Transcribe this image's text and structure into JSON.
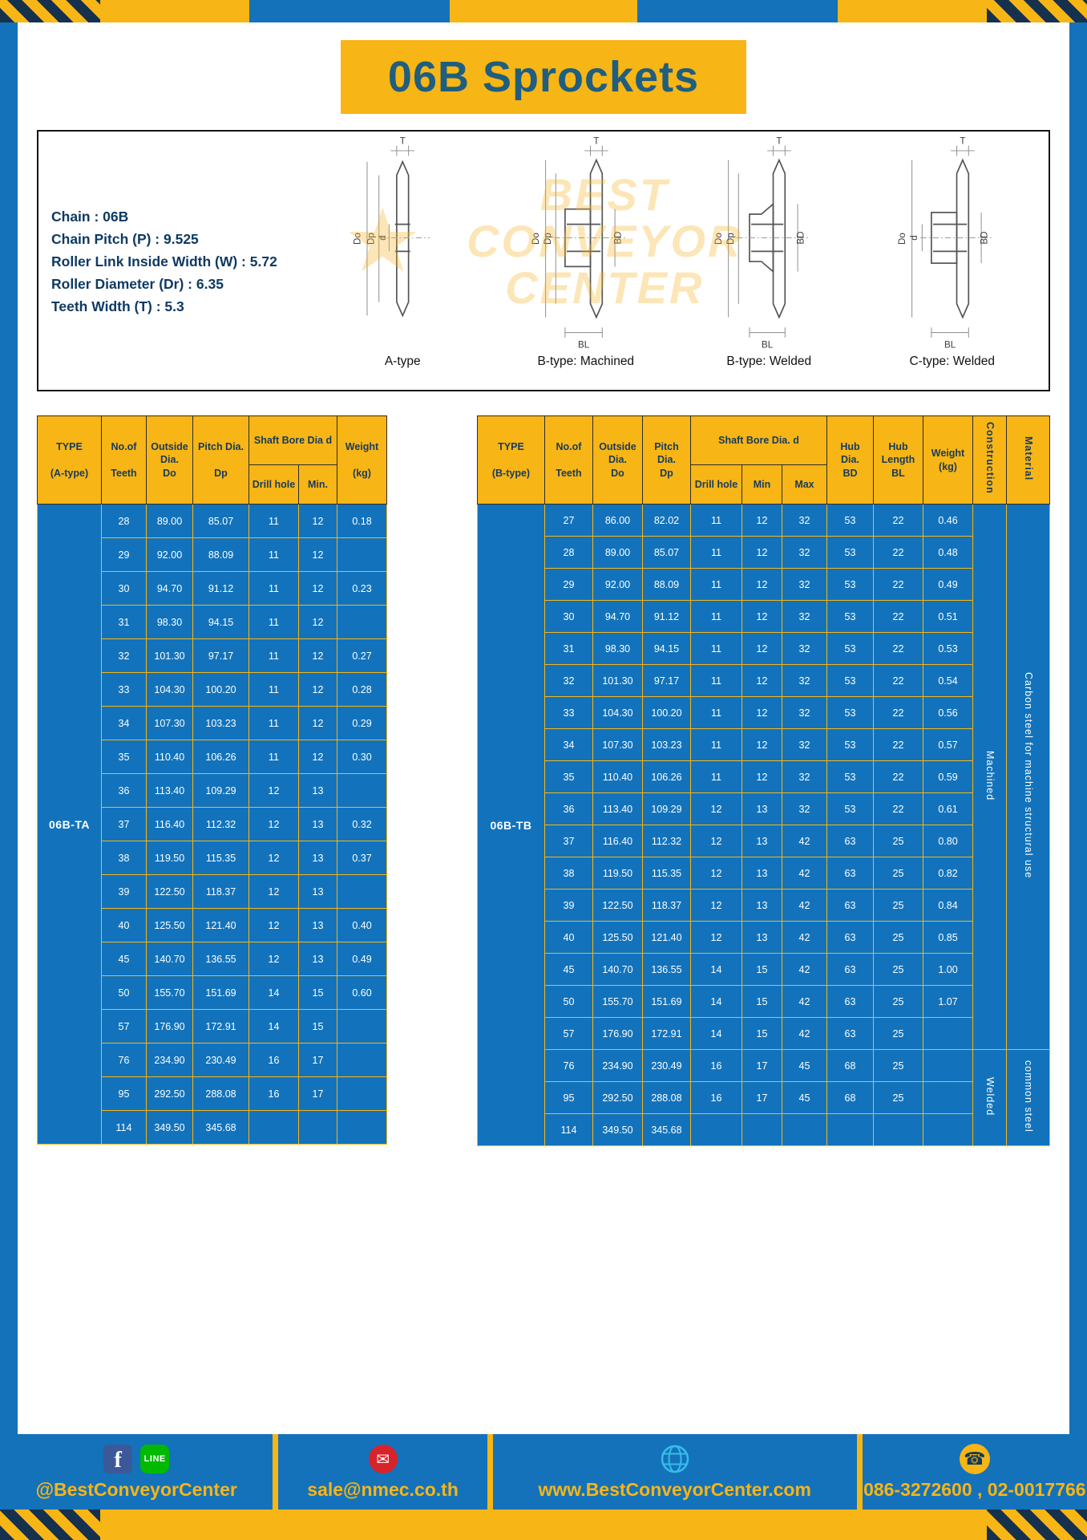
{
  "title": "06B Sprockets",
  "colors": {
    "frame_blue": "#1472ba",
    "accent_yellow": "#f7b516",
    "table_cell_blue": "#1273bc",
    "title_teal": "#1f5e7e",
    "header_text_navy": "#163a5e"
  },
  "specs": {
    "lines": [
      "Chain : 06B",
      "Chain Pitch (P) : 9.525",
      "Roller Link Inside Width (W) : 5.72",
      "Roller Diameter (Dr) : 6.35",
      "Teeth Width (T) : 5.3"
    ]
  },
  "watermark": {
    "star": "★",
    "line1": "BEST",
    "line2": "CONVEYOR",
    "line3": "CENTER"
  },
  "diagrams": {
    "captions": [
      "A-type",
      "B-type: Machined",
      "B-type: Welded",
      "C-type: Welded"
    ],
    "dims": {
      "t": "T",
      "do": "Do",
      "dp": "Dp",
      "d": "d",
      "bd": "BD",
      "bl": "BL"
    }
  },
  "table_a": {
    "type_label": "06B-TA",
    "headers": {
      "type": "TYPE\n\n(A-type)",
      "teeth": "No.of\n\nTeeth",
      "outside": "Outside\nDia.\nDo",
      "pitch": "Pitch Dia.\n\nDp",
      "bore_group": "Shaft Bore Dia d",
      "drill": "Drill hole",
      "min": "Min.",
      "weight": "Weight\n\n(kg)"
    },
    "rows": [
      [
        "28",
        "89.00",
        "85.07",
        "11",
        "12",
        "0.18"
      ],
      [
        "29",
        "92.00",
        "88.09",
        "11",
        "12",
        ""
      ],
      [
        "30",
        "94.70",
        "91.12",
        "11",
        "12",
        "0.23"
      ],
      [
        "31",
        "98.30",
        "94.15",
        "11",
        "12",
        ""
      ],
      [
        "32",
        "101.30",
        "97.17",
        "11",
        "12",
        "0.27"
      ],
      [
        "33",
        "104.30",
        "100.20",
        "11",
        "12",
        "0.28"
      ],
      [
        "34",
        "107.30",
        "103.23",
        "11",
        "12",
        "0.29"
      ],
      [
        "35",
        "110.40",
        "106.26",
        "11",
        "12",
        "0.30"
      ],
      [
        "36",
        "113.40",
        "109.29",
        "12",
        "13",
        ""
      ],
      [
        "37",
        "116.40",
        "112.32",
        "12",
        "13",
        "0.32"
      ],
      [
        "38",
        "119.50",
        "115.35",
        "12",
        "13",
        "0.37"
      ],
      [
        "39",
        "122.50",
        "118.37",
        "12",
        "13",
        ""
      ],
      [
        "40",
        "125.50",
        "121.40",
        "12",
        "13",
        "0.40"
      ],
      [
        "45",
        "140.70",
        "136.55",
        "12",
        "13",
        "0.49"
      ],
      [
        "50",
        "155.70",
        "151.69",
        "14",
        "15",
        "0.60"
      ],
      [
        "57",
        "176.90",
        "172.91",
        "14",
        "15",
        ""
      ],
      [
        "76",
        "234.90",
        "230.49",
        "16",
        "17",
        ""
      ],
      [
        "95",
        "292.50",
        "288.08",
        "16",
        "17",
        ""
      ],
      [
        "114",
        "349.50",
        "345.68",
        "",
        "",
        ""
      ]
    ]
  },
  "table_b": {
    "type_label": "06B-TB",
    "headers": {
      "type": "TYPE\n\n(B-type)",
      "teeth": "No.of\n\nTeeth",
      "outside": "Outside\nDia.\nDo",
      "pitch": "Pitch\nDia.\nDp",
      "bore_group": "Shaft Bore Dia. d",
      "drill": "Drill hole",
      "min": "Min",
      "max": "Max",
      "hub_dia": "Hub\nDia.\nBD",
      "hub_len": "Hub\nLength\nBL",
      "weight": "Weight\n(kg)",
      "construction": "Construction",
      "material": "Material"
    },
    "rows": [
      [
        "27",
        "86.00",
        "82.02",
        "11",
        "12",
        "32",
        "53",
        "22",
        "0.46"
      ],
      [
        "28",
        "89.00",
        "85.07",
        "11",
        "12",
        "32",
        "53",
        "22",
        "0.48"
      ],
      [
        "29",
        "92.00",
        "88.09",
        "11",
        "12",
        "32",
        "53",
        "22",
        "0.49"
      ],
      [
        "30",
        "94.70",
        "91.12",
        "11",
        "12",
        "32",
        "53",
        "22",
        "0.51"
      ],
      [
        "31",
        "98.30",
        "94.15",
        "11",
        "12",
        "32",
        "53",
        "22",
        "0.53"
      ],
      [
        "32",
        "101.30",
        "97.17",
        "11",
        "12",
        "32",
        "53",
        "22",
        "0.54"
      ],
      [
        "33",
        "104.30",
        "100.20",
        "11",
        "12",
        "32",
        "53",
        "22",
        "0.56"
      ],
      [
        "34",
        "107.30",
        "103.23",
        "11",
        "12",
        "32",
        "53",
        "22",
        "0.57"
      ],
      [
        "35",
        "110.40",
        "106.26",
        "11",
        "12",
        "32",
        "53",
        "22",
        "0.59"
      ],
      [
        "36",
        "113.40",
        "109.29",
        "12",
        "13",
        "32",
        "53",
        "22",
        "0.61"
      ],
      [
        "37",
        "116.40",
        "112.32",
        "12",
        "13",
        "42",
        "63",
        "25",
        "0.80"
      ],
      [
        "38",
        "119.50",
        "115.35",
        "12",
        "13",
        "42",
        "63",
        "25",
        "0.82"
      ],
      [
        "39",
        "122.50",
        "118.37",
        "12",
        "13",
        "42",
        "63",
        "25",
        "0.84"
      ],
      [
        "40",
        "125.50",
        "121.40",
        "12",
        "13",
        "42",
        "63",
        "25",
        "0.85"
      ],
      [
        "45",
        "140.70",
        "136.55",
        "14",
        "15",
        "42",
        "63",
        "25",
        "1.00"
      ],
      [
        "50",
        "155.70",
        "151.69",
        "14",
        "15",
        "42",
        "63",
        "25",
        "1.07"
      ],
      [
        "57",
        "176.90",
        "172.91",
        "14",
        "15",
        "42",
        "63",
        "25",
        ""
      ],
      [
        "76",
        "234.90",
        "230.49",
        "16",
        "17",
        "45",
        "68",
        "25",
        ""
      ],
      [
        "95",
        "292.50",
        "288.08",
        "16",
        "17",
        "45",
        "68",
        "25",
        ""
      ],
      [
        "114",
        "349.50",
        "345.68",
        "",
        "",
        "",
        "",
        "",
        ""
      ]
    ],
    "spans": [
      {
        "col": "construction",
        "start": 0,
        "len": 17,
        "label": "Machined"
      },
      {
        "col": "material",
        "start": 0,
        "len": 17,
        "label": "Carbon steel for machine structural use"
      },
      {
        "col": "construction",
        "start": 17,
        "len": 3,
        "label": "Welded"
      },
      {
        "col": "material",
        "start": 17,
        "len": 3,
        "label": "common steel"
      }
    ]
  },
  "footer": {
    "facebook_handle": "@BestConveyorCenter",
    "email": "sale@nmec.co.th",
    "website": "www.BestConveyorCenter.com",
    "phones": "086-3272600 , 02-0017766",
    "icons": {
      "facebook": "f",
      "line": "LINE",
      "mail": "✉",
      "phone": "☎"
    }
  }
}
